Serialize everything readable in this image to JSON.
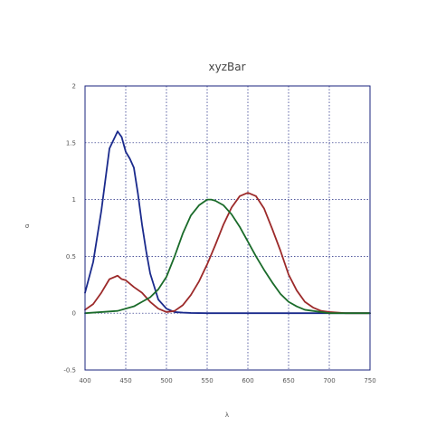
{
  "chart_data": {
    "type": "line",
    "title": "xyzBar",
    "xlabel": "λ",
    "ylabel": "σ",
    "xlim": [
      400,
      750
    ],
    "ylim": [
      -0.5,
      2
    ],
    "xticks": [
      400,
      450,
      500,
      550,
      600,
      650,
      700,
      750
    ],
    "yticks": [
      -0.5,
      0,
      0.5,
      1,
      1.5,
      2
    ],
    "xtick_labels": [
      "400",
      "450",
      "500",
      "550",
      "600",
      "650",
      "700",
      "750"
    ],
    "ytick_labels": [
      "-0.5",
      "0",
      "0.5",
      "1",
      "1.5",
      "2"
    ],
    "grid": true,
    "series": [
      {
        "color": "#1a2a8c",
        "x": [
          400,
          410,
          420,
          430,
          440,
          445,
          450,
          455,
          460,
          465,
          470,
          475,
          480,
          490,
          500,
          510,
          520,
          530,
          540,
          550,
          600,
          650,
          700,
          750
        ],
        "y": [
          0.18,
          0.45,
          0.9,
          1.45,
          1.6,
          1.55,
          1.42,
          1.36,
          1.28,
          1.05,
          0.78,
          0.55,
          0.35,
          0.12,
          0.04,
          0.01,
          0.005,
          0.002,
          0.001,
          0.0,
          0.0,
          0.0,
          0.0,
          0.0
        ]
      },
      {
        "color": "#9c2a2a",
        "x": [
          400,
          410,
          420,
          430,
          440,
          445,
          450,
          460,
          470,
          480,
          490,
          500,
          510,
          520,
          530,
          540,
          550,
          560,
          570,
          580,
          590,
          600,
          610,
          620,
          630,
          640,
          650,
          660,
          670,
          680,
          690,
          700,
          720,
          750
        ],
        "y": [
          0.03,
          0.08,
          0.18,
          0.3,
          0.33,
          0.3,
          0.29,
          0.23,
          0.18,
          0.1,
          0.04,
          0.01,
          0.02,
          0.07,
          0.16,
          0.28,
          0.43,
          0.6,
          0.78,
          0.93,
          1.03,
          1.06,
          1.03,
          0.92,
          0.74,
          0.55,
          0.34,
          0.2,
          0.1,
          0.05,
          0.02,
          0.01,
          0.0,
          0.0
        ]
      },
      {
        "color": "#1a6b2a",
        "x": [
          400,
          420,
          440,
          460,
          470,
          480,
          490,
          500,
          510,
          520,
          530,
          540,
          550,
          555,
          560,
          570,
          580,
          590,
          600,
          610,
          620,
          630,
          640,
          650,
          660,
          670,
          680,
          700,
          750
        ],
        "y": [
          0.0,
          0.01,
          0.02,
          0.06,
          0.1,
          0.14,
          0.21,
          0.32,
          0.5,
          0.7,
          0.86,
          0.95,
          1.0,
          1.0,
          0.99,
          0.95,
          0.87,
          0.76,
          0.63,
          0.5,
          0.38,
          0.27,
          0.17,
          0.1,
          0.06,
          0.03,
          0.02,
          0.0,
          0.0
        ]
      }
    ]
  }
}
